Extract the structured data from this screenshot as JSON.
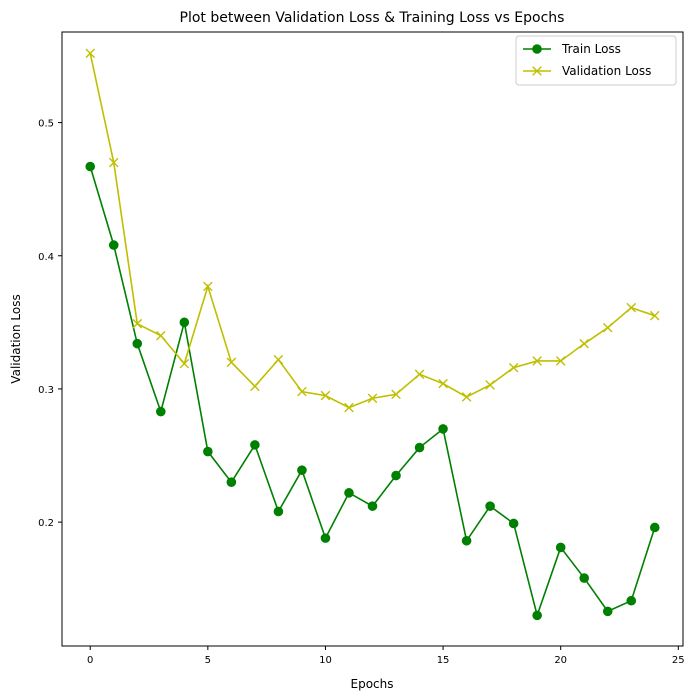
{
  "chart_data": {
    "type": "line",
    "title": "Plot between Validation Loss & Training Loss vs Epochs",
    "xlabel": "Epochs",
    "ylabel": "Validation Loss",
    "xlim": [
      -1.2,
      25.2
    ],
    "ylim": [
      0.107,
      0.568
    ],
    "xticks": [
      0,
      5,
      10,
      15,
      20,
      25
    ],
    "yticks": [
      0.2,
      0.3,
      0.4,
      0.5
    ],
    "grid": false,
    "legend_position": "top-right",
    "x": [
      0,
      1,
      2,
      3,
      4,
      5,
      6,
      7,
      8,
      9,
      10,
      11,
      12,
      13,
      14,
      15,
      16,
      17,
      18,
      19,
      20,
      21,
      22,
      23,
      24
    ],
    "series": [
      {
        "name": "Train Loss",
        "color": "#008000",
        "marker": "circle",
        "values": [
          0.467,
          0.408,
          0.334,
          0.283,
          0.35,
          0.253,
          0.23,
          0.258,
          0.208,
          0.239,
          0.188,
          0.222,
          0.212,
          0.235,
          0.256,
          0.27,
          0.186,
          0.212,
          0.199,
          0.13,
          0.181,
          0.158,
          0.133,
          0.141,
          0.196
        ]
      },
      {
        "name": "Validation Loss",
        "color": "#bfbf00",
        "marker": "x",
        "values": [
          0.552,
          0.47,
          0.349,
          0.34,
          0.319,
          0.377,
          0.32,
          0.302,
          0.322,
          0.298,
          0.295,
          0.286,
          0.293,
          0.296,
          0.311,
          0.304,
          0.294,
          0.303,
          0.316,
          0.321,
          0.321,
          0.334,
          0.346,
          0.361,
          0.355
        ]
      }
    ]
  }
}
